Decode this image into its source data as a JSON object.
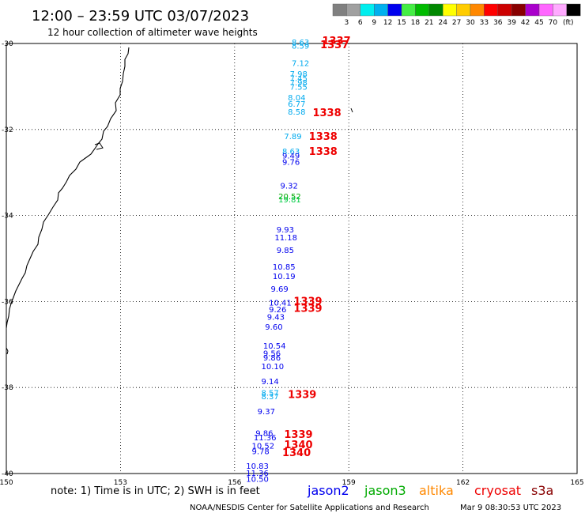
{
  "header": {
    "title": "12:00 – 23:59 UTC 03/07/2023",
    "subtitle": "12 hour collection of altimeter wave heights"
  },
  "legend_bar": {
    "unit": "(ft)",
    "swatches": [
      {
        "label": "",
        "color": "#808080"
      },
      {
        "label": "3",
        "color": "#a0a0a0"
      },
      {
        "label": "6",
        "color": "#00eeee"
      },
      {
        "label": "9",
        "color": "#00b0ee"
      },
      {
        "label": "12",
        "color": "#0000ee"
      },
      {
        "label": "15",
        "color": "#44ee44"
      },
      {
        "label": "18",
        "color": "#00bb00"
      },
      {
        "label": "21",
        "color": "#008800"
      },
      {
        "label": "24",
        "color": "#ffff00"
      },
      {
        "label": "27",
        "color": "#ffcc00"
      },
      {
        "label": "30",
        "color": "#ff8800"
      },
      {
        "label": "33",
        "color": "#ff0000"
      },
      {
        "label": "36",
        "color": "#cc0000"
      },
      {
        "label": "39",
        "color": "#880000"
      },
      {
        "label": "42",
        "color": "#aa00cc"
      },
      {
        "label": "45",
        "color": "#ff66ff"
      },
      {
        "label": "70",
        "color": "#ffaaff"
      },
      {
        "label": "",
        "color": "#000000"
      }
    ]
  },
  "footer": {
    "note": "note: 1) Time is in UTC; 2) SWH is in feet",
    "credit": "NOAA/NESDIS Center for Satellite Applications and Research",
    "timestamp": "Mar  9 08:30:53 UTC 2023",
    "satellites": [
      {
        "name": "jason2",
        "color": "#0000ee"
      },
      {
        "name": "jason3",
        "color": "#00aa00"
      },
      {
        "name": "altika",
        "color": "#ff8800"
      },
      {
        "name": "cryosat",
        "color": "#ee0000"
      },
      {
        "name": "s3a",
        "color": "#880000"
      }
    ]
  },
  "chart_data": {
    "type": "scatter",
    "title": "",
    "xlabel": "",
    "ylabel": "",
    "xlim": [
      150,
      165
    ],
    "ylim": [
      -40,
      -30
    ],
    "grid": true,
    "x_ticks": [
      "150",
      "153",
      "156",
      "159",
      "162",
      "165"
    ],
    "y_ticks": [
      "-30",
      "-32",
      "-34",
      "-36",
      "-38",
      "-40"
    ],
    "y_tick_values": [
      -30,
      -32,
      -34,
      -36,
      -38,
      -40
    ],
    "x_tick_values": [
      150,
      153,
      156,
      159,
      162,
      165
    ],
    "wave_heights": [
      {
        "label": "8.63",
        "lon": 157.5,
        "lat": -29.96,
        "color": "#00aaee"
      },
      {
        "label": "8.59",
        "lon": 157.5,
        "lat": -30.05,
        "color": "#00aaee"
      },
      {
        "label": "7.12",
        "lon": 157.5,
        "lat": -30.45,
        "color": "#00aaee"
      },
      {
        "label": "7.98",
        "lon": 157.45,
        "lat": -30.7,
        "color": "#00aaee"
      },
      {
        "label": "7.45",
        "lon": 157.45,
        "lat": -30.8,
        "color": "#00aaee"
      },
      {
        "label": "7.98",
        "lon": 157.45,
        "lat": -30.9,
        "color": "#00aaee"
      },
      {
        "label": "7.55",
        "lon": 157.45,
        "lat": -31.0,
        "color": "#00aaee"
      },
      {
        "label": "8.04",
        "lon": 157.4,
        "lat": -31.25,
        "color": "#00aaee"
      },
      {
        "label": "6.77",
        "lon": 157.4,
        "lat": -31.4,
        "color": "#00aaee"
      },
      {
        "label": "8.58",
        "lon": 157.4,
        "lat": -31.58,
        "color": "#00aaee"
      },
      {
        "label": "7.89",
        "lon": 157.3,
        "lat": -32.15,
        "color": "#00aaee"
      },
      {
        "label": "8.63",
        "lon": 157.25,
        "lat": -32.5,
        "color": "#00aaee"
      },
      {
        "label": "9.49",
        "lon": 157.25,
        "lat": -32.6,
        "color": "#0000ee"
      },
      {
        "label": "9.76",
        "lon": 157.25,
        "lat": -32.75,
        "color": "#0000ee"
      },
      {
        "label": "9.32",
        "lon": 157.2,
        "lat": -33.3,
        "color": "#0000ee"
      },
      {
        "label": "20.52",
        "lon": 157.15,
        "lat": -33.55,
        "color": "#00aa00"
      },
      {
        "label": "19.81",
        "lon": 157.15,
        "lat": -33.62,
        "color": "#00cc44"
      },
      {
        "label": "9.93",
        "lon": 157.1,
        "lat": -34.32,
        "color": "#0000ee"
      },
      {
        "label": "11.18",
        "lon": 157.05,
        "lat": -34.5,
        "color": "#0000ee"
      },
      {
        "label": "9.85",
        "lon": 157.1,
        "lat": -34.8,
        "color": "#0000ee"
      },
      {
        "label": "10.85",
        "lon": 157.0,
        "lat": -35.18,
        "color": "#0000ee"
      },
      {
        "label": "10.19",
        "lon": 157.0,
        "lat": -35.4,
        "color": "#0000ee"
      },
      {
        "label": "9.69",
        "lon": 156.95,
        "lat": -35.7,
        "color": "#0000ee"
      },
      {
        "label": "10.41",
        "lon": 156.9,
        "lat": -36.02,
        "color": "#0000ee"
      },
      {
        "label": "9.26",
        "lon": 156.9,
        "lat": -36.18,
        "color": "#0000ee"
      },
      {
        "label": "9.43",
        "lon": 156.85,
        "lat": -36.35,
        "color": "#0000ee"
      },
      {
        "label": "9.60",
        "lon": 156.8,
        "lat": -36.58,
        "color": "#0000ee"
      },
      {
        "label": "10.54",
        "lon": 156.75,
        "lat": -37.02,
        "color": "#0000ee"
      },
      {
        "label": "9.56",
        "lon": 156.75,
        "lat": -37.2,
        "color": "#0000ee"
      },
      {
        "label": "9.86",
        "lon": 156.75,
        "lat": -37.3,
        "color": "#0000ee"
      },
      {
        "label": "10.10",
        "lon": 156.7,
        "lat": -37.5,
        "color": "#0000ee"
      },
      {
        "label": "9.14",
        "lon": 156.7,
        "lat": -37.85,
        "color": "#0000ee"
      },
      {
        "label": "8.57",
        "lon": 156.7,
        "lat": -38.12,
        "color": "#00aaee"
      },
      {
        "label": "8.37",
        "lon": 156.7,
        "lat": -38.2,
        "color": "#00aaee"
      },
      {
        "label": "9.37",
        "lon": 156.6,
        "lat": -38.55,
        "color": "#0000ee"
      },
      {
        "label": "9.86",
        "lon": 156.55,
        "lat": -39.05,
        "color": "#0000ee"
      },
      {
        "label": "11.36",
        "lon": 156.5,
        "lat": -39.15,
        "color": "#0000ee"
      },
      {
        "label": "10.52",
        "lon": 156.45,
        "lat": -39.35,
        "color": "#0000ee"
      },
      {
        "label": "9.78",
        "lon": 156.45,
        "lat": -39.48,
        "color": "#0000ee"
      },
      {
        "label": "10.83",
        "lon": 156.3,
        "lat": -39.82,
        "color": "#0000ee"
      },
      {
        "label": "11.36",
        "lon": 156.3,
        "lat": -39.98,
        "color": "#0000ee"
      },
      {
        "label": "10.50",
        "lon": 156.3,
        "lat": -40.12,
        "color": "#0000ee"
      }
    ],
    "time_labels": [
      {
        "label": "1337",
        "lon": 158.3,
        "lat": -29.93,
        "color": "#ee0000"
      },
      {
        "label": "1337",
        "lon": 158.25,
        "lat": -30.02,
        "color": "#ee0000"
      },
      {
        "label": "1338",
        "lon": 158.05,
        "lat": -31.6,
        "color": "#ee0000"
      },
      {
        "label": "1338",
        "lon": 157.95,
        "lat": -32.15,
        "color": "#ee0000"
      },
      {
        "label": "1338",
        "lon": 157.95,
        "lat": -32.5,
        "color": "#ee0000"
      },
      {
        "label": "1339",
        "lon": 157.55,
        "lat": -35.98,
        "color": "#ee0000"
      },
      {
        "label": "1339",
        "lon": 157.55,
        "lat": -36.15,
        "color": "#ee0000"
      },
      {
        "label": "1339",
        "lon": 157.4,
        "lat": -38.15,
        "color": "#ee0000"
      },
      {
        "label": "1339",
        "lon": 157.3,
        "lat": -39.08,
        "color": "#ee0000"
      },
      {
        "label": "1340",
        "lon": 157.3,
        "lat": -39.32,
        "color": "#ee0000"
      },
      {
        "label": "1340",
        "lon": 157.25,
        "lat": -39.5,
        "color": "#ee0000"
      }
    ]
  }
}
